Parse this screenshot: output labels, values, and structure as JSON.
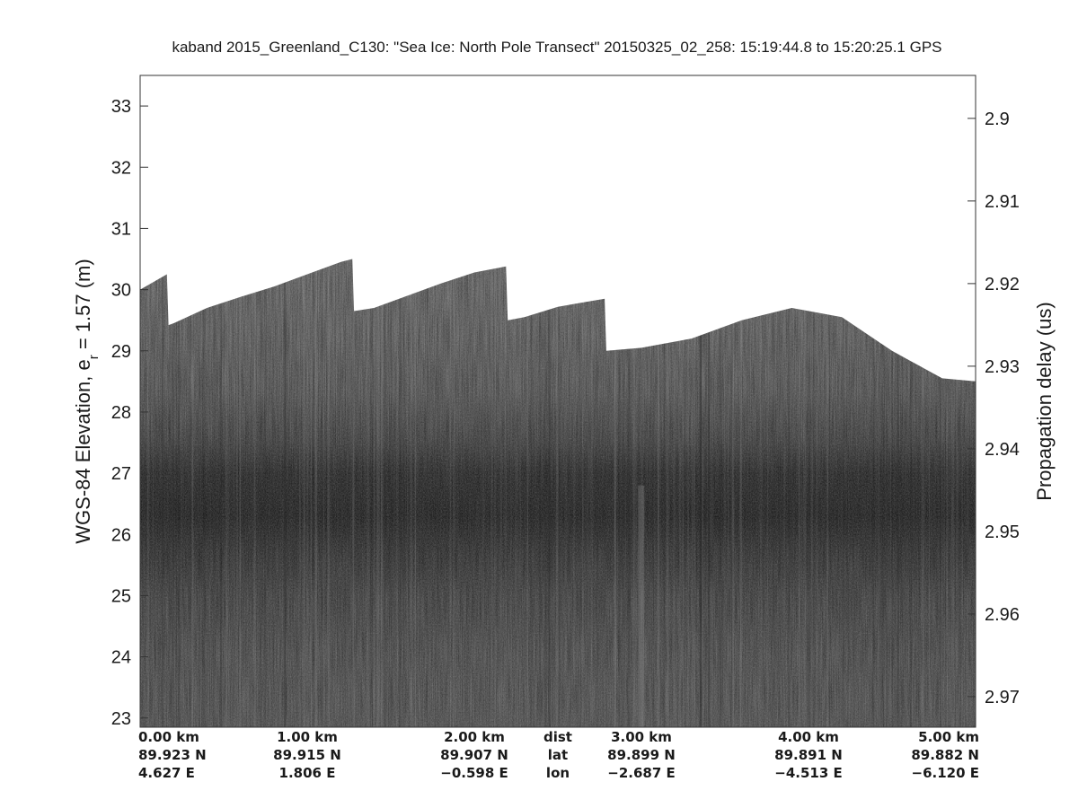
{
  "chart_data": {
    "type": "heatmap",
    "title": "kaband 2015_Greenland_C130: \"Sea Ice: North Pole Transect\"  20150325_02_258: 15:19:44.8 to 15:20:25.1 GPS",
    "ylabel_left_prefix": "WGS-84 Elevation, e",
    "ylabel_left_sub": "r",
    "ylabel_left_suffix": " = 1.57 (m)",
    "ylabel_right": "Propagation delay (us)",
    "colormap": "gray",
    "grid": false,
    "x_km_range": [
      0,
      5
    ],
    "ylim_left": [
      22.85,
      33.5
    ],
    "ylim_right": [
      2.8948,
      2.9737
    ],
    "y_ticks_left": [
      23,
      24,
      25,
      26,
      27,
      28,
      29,
      30,
      31,
      32,
      33
    ],
    "y_ticks_right": [
      2.9,
      2.91,
      2.92,
      2.93,
      2.94,
      2.95,
      2.96,
      2.97
    ],
    "y_ticks_right_labels": [
      "2.9",
      "2.91",
      "2.92",
      "2.93",
      "2.94",
      "2.95",
      "2.96",
      "2.97"
    ],
    "surface_profile": {
      "x_km": [
        0.0,
        0.16,
        0.17,
        0.2,
        0.4,
        0.6,
        0.8,
        1.0,
        1.2,
        1.27,
        1.28,
        1.4,
        1.6,
        1.8,
        2.0,
        2.19,
        2.2,
        2.3,
        2.5,
        2.78,
        2.79,
        3.0,
        3.3,
        3.6,
        3.9,
        4.2,
        4.5,
        4.8,
        5.0
      ],
      "elevation_m": [
        30.0,
        30.25,
        29.42,
        29.45,
        29.7,
        29.88,
        30.05,
        30.25,
        30.45,
        30.5,
        29.65,
        29.7,
        29.9,
        30.1,
        30.28,
        30.38,
        29.5,
        29.55,
        29.72,
        29.85,
        29.0,
        29.05,
        29.2,
        29.5,
        29.7,
        29.55,
        29.0,
        28.55,
        28.5
      ]
    },
    "dark_band_elevation_m": [
      26.3,
      27.0
    ],
    "bottom_rows": [
      {
        "row": "dist",
        "values": [
          "0.00 km",
          "1.00 km",
          "2.00 km",
          "3.00 km",
          "4.00 km",
          "5.00 km"
        ]
      },
      {
        "row": "lat",
        "values": [
          "89.923 N",
          "89.915 N",
          "89.907 N",
          "89.899 N",
          "89.891 N",
          "89.882 N"
        ]
      },
      {
        "row": "lon",
        "values": [
          "4.627 E",
          "1.806 E",
          "−0.598 E",
          "−2.687 E",
          "−4.513 E",
          "−6.120 E"
        ]
      }
    ]
  },
  "style": {
    "background": "#ffffff",
    "sky_color": "#ffffff",
    "text_color": "#1a1a1a",
    "axis_color": "#333333"
  }
}
